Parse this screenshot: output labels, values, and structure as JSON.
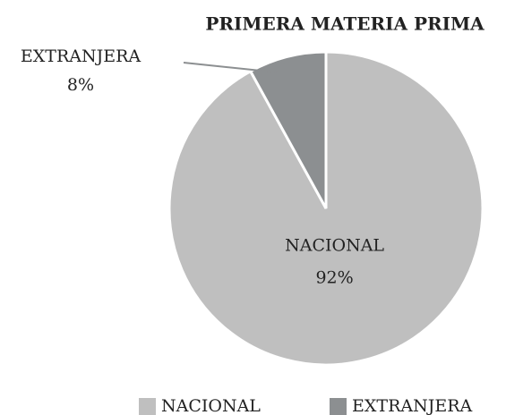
{
  "chart_data": {
    "type": "pie",
    "title": "PRIMERA MATERIA PRIMA",
    "categories": [
      "NACIONAL",
      "EXTRANJERA"
    ],
    "values": [
      92,
      8
    ],
    "value_labels": [
      "92%",
      "8%"
    ],
    "colors": [
      "#bfbfbf",
      "#8c8f91"
    ],
    "legend": "bottom"
  }
}
